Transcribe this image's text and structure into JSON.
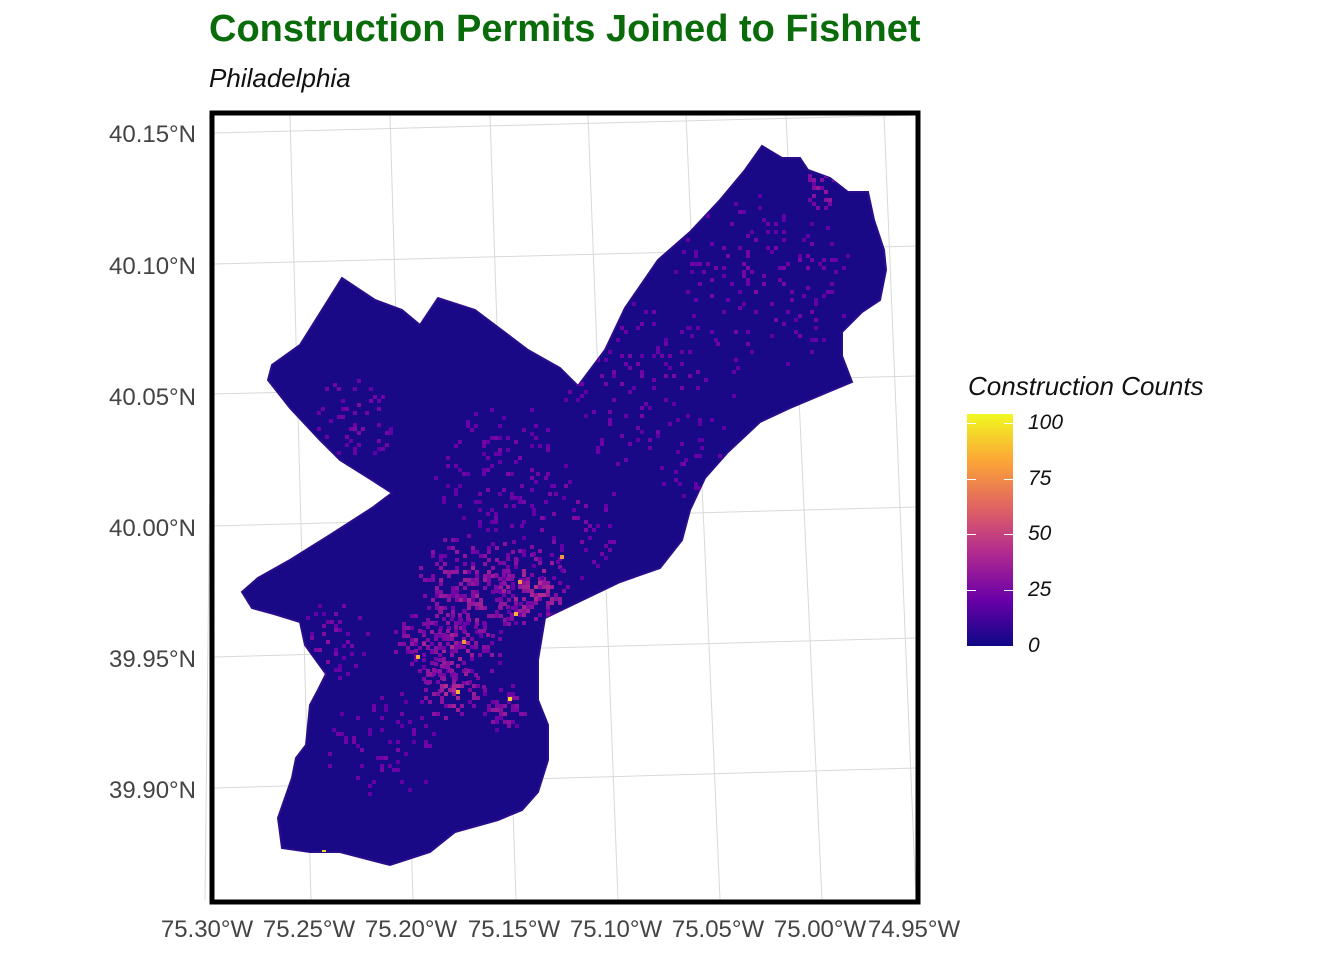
{
  "title": "Construction Permits Joined to Fishnet",
  "subtitle": "Philadelphia",
  "map": {
    "lat_axis": {
      "ticks": [
        "40.15°N",
        "40.10°N",
        "40.05°N",
        "40.00°N",
        "39.95°N",
        "39.90°N"
      ]
    },
    "lon_axis": {
      "ticks": [
        "75.30°W",
        "75.25°W",
        "75.20°W",
        "75.15°W",
        "75.10°W",
        "75.05°W",
        "75.00°W",
        "74.95°W"
      ]
    },
    "region": "Philadelphia",
    "fill_palette": "plasma",
    "background_fill_color": "#1a0986",
    "panel_border_color": "#000000",
    "grid_color": "#d9d9d9"
  },
  "legend": {
    "title": "Construction Counts",
    "ticks": [
      {
        "label": "100",
        "value": 100
      },
      {
        "label": "75",
        "value": 75
      },
      {
        "label": "50",
        "value": 50
      },
      {
        "label": "25",
        "value": 25
      },
      {
        "label": "0",
        "value": 0
      }
    ],
    "min": 0,
    "max": 104,
    "colors": [
      "#0d0887",
      "#6a00a8",
      "#b12a90",
      "#e16462",
      "#fca636",
      "#f0f921"
    ]
  }
}
